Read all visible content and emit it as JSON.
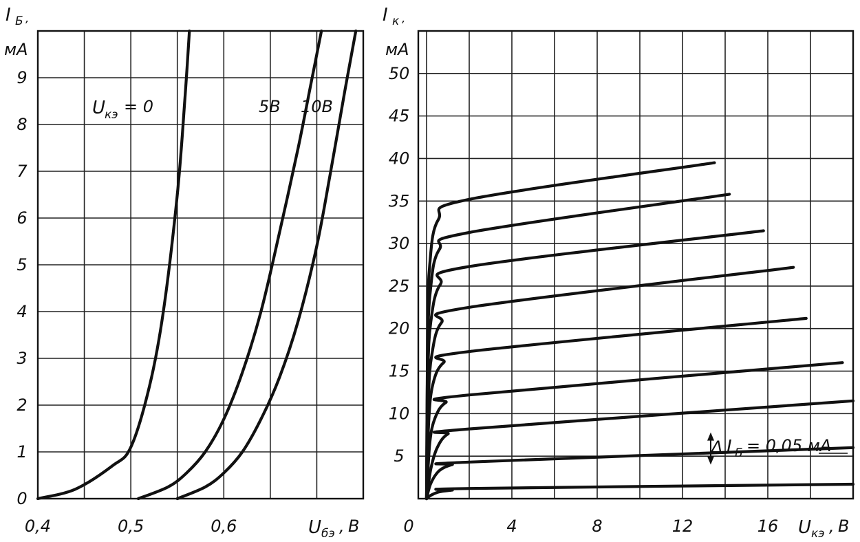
{
  "chart_data": [
    {
      "type": "line",
      "title": "",
      "ylabel_symbol": "I",
      "ylabel_sub": "Б",
      "ylabel_unit": "мА",
      "xlabel_symbol": "U",
      "xlabel_sub": "бэ",
      "xlabel_unit": "В",
      "xlim": [
        0.4,
        0.75
      ],
      "ylim": [
        0,
        10
      ],
      "grid": true,
      "x_ticks": [
        {
          "value": 0.4,
          "label": "0,4"
        },
        {
          "value": 0.5,
          "label": "0,5"
        },
        {
          "value": 0.6,
          "label": "0,6"
        }
      ],
      "y_ticks": [
        {
          "value": 0,
          "label": "0"
        },
        {
          "value": 1,
          "label": "1"
        },
        {
          "value": 2,
          "label": "2"
        },
        {
          "value": 3,
          "label": "3"
        },
        {
          "value": 4,
          "label": "4"
        },
        {
          "value": 5,
          "label": "5"
        },
        {
          "value": 6,
          "label": "6"
        },
        {
          "value": 7,
          "label": "7"
        },
        {
          "value": 8,
          "label": "8"
        },
        {
          "value": 9,
          "label": "9"
        }
      ],
      "annotations": [
        {
          "text_symbol": "U",
          "text_sub": "кэ",
          "text_rest": "= 0",
          "x": 0.458,
          "y": 8.3
        },
        {
          "text": "5В",
          "x": 0.64,
          "y": 8.3
        },
        {
          "text": "10В",
          "x": 0.688,
          "y": 8.3
        }
      ],
      "series": [
        {
          "curve_label": "Uкэ = 0",
          "x": [
            0.4,
            0.44,
            0.48,
            0.5,
            0.52,
            0.535,
            0.55,
            0.558,
            0.563
          ],
          "y": [
            0.0,
            0.2,
            0.7,
            1.1,
            2.4,
            4.0,
            6.5,
            8.5,
            10.0
          ]
        },
        {
          "curve_label": "5В",
          "x": [
            0.508,
            0.54,
            0.56,
            0.58,
            0.6,
            0.62,
            0.64,
            0.66,
            0.68,
            0.695,
            0.705
          ],
          "y": [
            0.0,
            0.25,
            0.55,
            1.0,
            1.7,
            2.7,
            4.0,
            5.7,
            7.5,
            9.0,
            10.0
          ]
        },
        {
          "curve_label": "10В",
          "x": [
            0.55,
            0.58,
            0.6,
            0.62,
            0.64,
            0.66,
            0.68,
            0.7,
            0.715,
            0.73,
            0.742
          ],
          "y": [
            0.0,
            0.25,
            0.55,
            1.0,
            1.7,
            2.6,
            3.8,
            5.4,
            7.0,
            8.7,
            10.0
          ]
        }
      ]
    },
    {
      "type": "line",
      "title": "",
      "ylabel_symbol": "I",
      "ylabel_sub": "к",
      "ylabel_unit": "мА",
      "xlabel_symbol": "U",
      "xlabel_sub": "кэ",
      "xlabel_unit": "В",
      "xlim": [
        0,
        20
      ],
      "ylim": [
        0,
        55
      ],
      "grid": true,
      "x_ticks": [
        {
          "value": 0,
          "label": "0"
        },
        {
          "value": 4,
          "label": "4"
        },
        {
          "value": 8,
          "label": "8"
        },
        {
          "value": 12,
          "label": "12"
        },
        {
          "value": 16,
          "label": "16"
        }
      ],
      "y_ticks": [
        {
          "value": 5,
          "label": "5"
        },
        {
          "value": 10,
          "label": "10"
        },
        {
          "value": 15,
          "label": "15"
        },
        {
          "value": 20,
          "label": "20"
        },
        {
          "value": 25,
          "label": "25"
        },
        {
          "value": 30,
          "label": "30"
        },
        {
          "value": 35,
          "label": "35"
        },
        {
          "value": 40,
          "label": "40"
        },
        {
          "value": 45,
          "label": "45"
        },
        {
          "value": 50,
          "label": "50"
        }
      ],
      "annotation": {
        "delta": "Δ",
        "symbol": "I",
        "sub": "Б",
        "rest": "= 0,05 мА",
        "arrow_x": 13,
        "arrow_y_top": 7.8,
        "arrow_y_bottom": 4.0
      },
      "series": [
        {
          "x": [
            0,
            0.2,
            0.6,
            1.2,
            2,
            20
          ],
          "y": [
            0,
            0.4,
            0.8,
            1.0,
            1.2,
            1.7
          ]
        },
        {
          "x": [
            0,
            0.2,
            0.6,
            1.2,
            2,
            20
          ],
          "y": [
            0,
            1.8,
            3.3,
            4.0,
            4.3,
            6.0
          ]
        },
        {
          "x": [
            0,
            0.2,
            0.5,
            1.0,
            2,
            20
          ],
          "y": [
            0,
            3.5,
            6.0,
            7.6,
            8.2,
            11.5
          ]
        },
        {
          "x": [
            0,
            0.15,
            0.4,
            0.9,
            2,
            19.5
          ],
          "y": [
            0,
            6.5,
            9.5,
            11.3,
            12.2,
            16.0
          ]
        },
        {
          "x": [
            0,
            0.1,
            0.3,
            0.8,
            2,
            17.8
          ],
          "y": [
            0,
            9.0,
            13.5,
            16.0,
            17.3,
            21.2
          ]
        },
        {
          "x": [
            0,
            0.08,
            0.25,
            0.7,
            2,
            17.2
          ],
          "y": [
            0,
            11.5,
            17.0,
            20.7,
            22.5,
            27.2
          ]
        },
        {
          "x": [
            0,
            0.06,
            0.2,
            0.65,
            2,
            15.8
          ],
          "y": [
            0,
            14.5,
            20.8,
            25.2,
            27.3,
            31.5
          ]
        },
        {
          "x": [
            0,
            0.05,
            0.18,
            0.6,
            2,
            14.2
          ],
          "y": [
            0,
            17.0,
            24.5,
            29.3,
            31.3,
            35.8
          ]
        },
        {
          "x": [
            0,
            0.05,
            0.15,
            0.55,
            2,
            13.5
          ],
          "y": [
            0,
            19.5,
            27.5,
            32.8,
            35.2,
            39.5
          ]
        }
      ]
    }
  ]
}
